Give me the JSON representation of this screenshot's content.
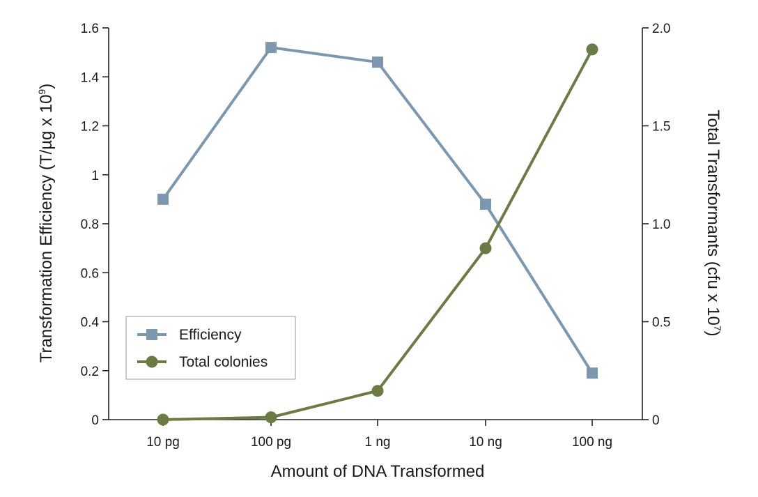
{
  "chart_data": {
    "type": "line",
    "categories": [
      "10 pg",
      "100 pg",
      "1 ng",
      "10 ng",
      "100 ng"
    ],
    "xlabel": "Amount of DNA Transformed",
    "ylabel": {
      "main": "Transformation Efficiency (T/µg x 10",
      "sup": "9",
      "end": ")"
    },
    "y2label": {
      "main": "Total Transformants (cfu x 10",
      "sup": "7",
      "end": ")"
    },
    "ylim": [
      0,
      1.6
    ],
    "y2lim": [
      0,
      2.0
    ],
    "yticks": [
      "0",
      "0.2",
      "0.4",
      "0.6",
      "0.8",
      "1",
      "1.2",
      "1.4",
      "1.6"
    ],
    "yticks_values": [
      0,
      0.2,
      0.4,
      0.6,
      0.8,
      1.0,
      1.2,
      1.4,
      1.6
    ],
    "y2ticks": [
      "0",
      "0.5",
      "1.0",
      "1.5",
      "2.0"
    ],
    "y2ticks_values": [
      0,
      0.5,
      1.0,
      1.5,
      2.0
    ],
    "legend_position": "lower-left",
    "grid": false,
    "series": [
      {
        "name": "Efficiency",
        "axis": "left",
        "marker": "square",
        "color": "#7d98ae",
        "values": [
          0.9,
          1.52,
          1.46,
          0.88,
          0.19
        ]
      },
      {
        "name": "Total colonies",
        "axis": "right",
        "marker": "circle",
        "color": "#6c7b45",
        "values": [
          0.0,
          0.012,
          0.147,
          0.875,
          1.89
        ]
      }
    ]
  }
}
